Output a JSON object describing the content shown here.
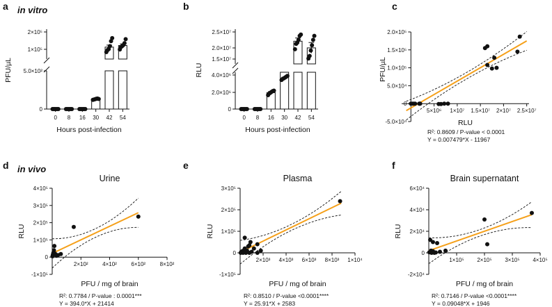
{
  "chart_data": [
    {
      "panel": "a",
      "type": "bar",
      "subtitle": "in vitro",
      "ylabel": "PFU/µL",
      "xlabel": "Hours post-infection",
      "categories": [
        "0",
        "8",
        "16",
        "30",
        "42",
        "54"
      ],
      "values": [
        0,
        0,
        0,
        130,
        110000,
        118000
      ],
      "errors": [
        2,
        2,
        2,
        6,
        10000,
        8000
      ],
      "points": [
        [
          0,
          0,
          0,
          0,
          0,
          0
        ],
        [
          0,
          0,
          0,
          0,
          0,
          0
        ],
        [
          0,
          0,
          0,
          0,
          0,
          0
        ],
        [
          120,
          125,
          130,
          135,
          138,
          132
        ],
        [
          85000,
          95000,
          100000,
          115000,
          140000,
          155000
        ],
        [
          98000,
          110000,
          115000,
          120000,
          130000,
          150000
        ]
      ],
      "y_broken": true,
      "yticks_lower": [
        "0",
        "5.0×10²"
      ],
      "yticks_upper": [
        "1×10⁵",
        "2×10⁵"
      ],
      "ylim_lower": [
        0,
        500
      ],
      "ylim_upper": [
        50000,
        200000
      ]
    },
    {
      "panel": "b",
      "type": "bar",
      "ylabel": "RLU",
      "xlabel": "Hours post-infection",
      "categories": [
        "0",
        "8",
        "16",
        "30",
        "42",
        "54"
      ],
      "values": [
        0,
        0,
        2000000,
        6700000,
        20500000,
        18000000
      ],
      "errors": [
        50000,
        50000,
        150000,
        300000,
        1200000,
        2000000
      ],
      "points": [
        [
          0,
          0,
          0,
          0,
          0,
          0
        ],
        [
          0,
          0,
          0,
          0,
          0,
          0
        ],
        [
          1700000,
          1900000,
          2000000,
          2100000,
          2200000,
          2250000
        ],
        [
          6000000,
          6400000,
          6600000,
          6900000,
          7200000,
          7500000
        ],
        [
          17500000,
          19500000,
          20000000,
          21000000,
          22500000,
          23000000
        ],
        [
          14000000,
          15000000,
          17000000,
          19000000,
          21000000,
          22500000
        ]
      ],
      "y_broken": true,
      "yticks_lower": [
        "0",
        "2.0×10⁶",
        "4.0×10⁶"
      ],
      "yticks_upper": [
        "1.5×10⁷",
        "2.0×10⁷",
        "2.5×10⁷"
      ],
      "ylim_lower": [
        0,
        4500000
      ],
      "ylim_upper": [
        12000000,
        25000000
      ]
    },
    {
      "panel": "c",
      "type": "scatter",
      "xlabel": "RLU",
      "ylabel": "PFU/µL",
      "xlim": [
        -2000000,
        25500000
      ],
      "ylim": [
        -50000,
        200000
      ],
      "xticks": [
        5000000,
        10000000,
        15000000,
        20000000,
        25000000
      ],
      "xtick_labels": [
        "5×10⁶",
        "1×10⁷",
        "1.5×10⁷",
        "2×10⁷",
        "2.5×10⁷"
      ],
      "yticks": [
        -50000,
        0,
        50000,
        100000,
        150000,
        200000
      ],
      "ytick_labels": [
        "-5.0×10⁴",
        "0",
        "5.0×10⁴",
        "1.0×10⁵",
        "1.5×10⁵",
        "2.0×10⁵"
      ],
      "points": [
        [
          0,
          0
        ],
        [
          300000,
          0
        ],
        [
          600000,
          0
        ],
        [
          900000,
          0
        ],
        [
          1800000,
          0
        ],
        [
          1900000,
          0
        ],
        [
          2000000,
          0
        ],
        [
          6000000,
          -1000
        ],
        [
          6500000,
          -1000
        ],
        [
          7200000,
          0
        ],
        [
          8000000,
          0
        ],
        [
          16000000,
          155000
        ],
        [
          16500000,
          160000
        ],
        [
          16500000,
          108000
        ],
        [
          17500000,
          98000
        ],
        [
          18500000,
          100000
        ],
        [
          18000000,
          128000
        ],
        [
          23000000,
          145000
        ],
        [
          23500000,
          187000
        ]
      ],
      "fit": {
        "slope": 0.007479,
        "intercept": -11967
      },
      "stat_line1": "R²: 0.8609 / P-value < 0.0001",
      "stat_line2": "Y = 0.007479*X - 11967"
    },
    {
      "panel": "d",
      "type": "scatter",
      "title": "Urine",
      "subtitle": "in vivo",
      "xlabel": "PFU / mg of brain",
      "ylabel": "RLU",
      "xlim": [
        0,
        800
      ],
      "ylim": [
        -100000,
        400000
      ],
      "xticks": [
        200,
        400,
        600,
        800
      ],
      "xtick_labels": [
        "2×10²",
        "4×10²",
        "6×10²",
        "8×10²"
      ],
      "yticks": [
        -100000,
        0,
        100000,
        200000,
        300000,
        400000
      ],
      "ytick_labels": [
        "-1×10⁵",
        "0",
        "1×10⁵",
        "2×10⁵",
        "3×10⁵",
        "4×10⁵"
      ],
      "points": [
        [
          2,
          5000
        ],
        [
          5,
          15000
        ],
        [
          8,
          25000
        ],
        [
          12,
          40000
        ],
        [
          15,
          65000
        ],
        [
          20,
          20000
        ],
        [
          30,
          8000
        ],
        [
          40,
          12000
        ],
        [
          60,
          18000
        ],
        [
          150,
          175000
        ],
        [
          600,
          235000
        ]
      ],
      "fit": {
        "slope": 394.0,
        "intercept": 21414
      },
      "stat_line1": "R²: 0.7784 / P-value : 0.0001***",
      "stat_line2": "Y = 394.0*X + 21414"
    },
    {
      "panel": "e",
      "type": "scatter",
      "title": "Plasma",
      "xlabel": "PFU / mg of brain",
      "ylabel": "RLU",
      "xlim": [
        0,
        10000
      ],
      "ylim": [
        -100000,
        300000
      ],
      "xticks": [
        2000,
        4000,
        6000,
        8000,
        10000
      ],
      "xtick_labels": [
        "2×10³",
        "4×10³",
        "6×10³",
        "8×10³",
        "1×10⁴"
      ],
      "yticks": [
        -100000,
        0,
        100000,
        200000,
        300000
      ],
      "ytick_labels": [
        "-1×10⁵",
        "0",
        "1×10⁵",
        "2×10⁵",
        "3×10⁵"
      ],
      "points": [
        [
          50,
          0
        ],
        [
          100,
          5000
        ],
        [
          150,
          2000
        ],
        [
          200,
          8000
        ],
        [
          250,
          0
        ],
        [
          300,
          3000
        ],
        [
          350,
          12000
        ],
        [
          400,
          20000
        ],
        [
          450,
          5000
        ],
        [
          500,
          0
        ],
        [
          600,
          10000
        ],
        [
          700,
          30000
        ],
        [
          800,
          0
        ],
        [
          900,
          50000
        ],
        [
          1000,
          5000
        ],
        [
          1200,
          20000
        ],
        [
          1500,
          0
        ],
        [
          1800,
          10000
        ],
        [
          400,
          70000
        ],
        [
          800,
          35000
        ],
        [
          1500,
          40000
        ],
        [
          8700,
          240000
        ]
      ],
      "fit": {
        "slope": 25.91,
        "intercept": 2583
      },
      "stat_line1": "R²: 0.8510 / P-value <0.0001****",
      "stat_line2": "Y = 25.91*X + 2583"
    },
    {
      "panel": "f",
      "type": "scatter",
      "title": "Brain supernatant",
      "xlabel": "PFU / mg of brain",
      "ylabel": "RLU",
      "xlim": [
        0,
        400000
      ],
      "ylim": [
        -20000,
        60000
      ],
      "xticks": [
        100000,
        200000,
        300000,
        400000
      ],
      "xtick_labels": [
        "1×10⁵",
        "2×10⁵",
        "3×10⁵",
        "4×10⁵"
      ],
      "yticks": [
        -20000,
        0,
        20000,
        40000,
        60000
      ],
      "ytick_labels": [
        "-2×10⁴",
        "0",
        "2×10⁴",
        "4×10⁴",
        "6×10⁴"
      ],
      "points": [
        [
          2000,
          500
        ],
        [
          5000,
          1000
        ],
        [
          8000,
          2000
        ],
        [
          10000,
          0
        ],
        [
          12000,
          500
        ],
        [
          15000,
          1500
        ],
        [
          20000,
          0
        ],
        [
          25000,
          300
        ],
        [
          5000,
          12000
        ],
        [
          15000,
          10000
        ],
        [
          30000,
          9000
        ],
        [
          40000,
          1000
        ],
        [
          60000,
          2000
        ],
        [
          200000,
          31000
        ],
        [
          210000,
          8000
        ],
        [
          370000,
          37000
        ]
      ],
      "fit": {
        "slope": 0.09048,
        "intercept": 1946
      },
      "stat_line1": "R²: 0.7146 / P-value <0.0001****",
      "stat_line2": "Y = 0.09048*X + 1946"
    }
  ],
  "colors": {
    "fit": "#f5a01a",
    "ink": "#111111"
  }
}
